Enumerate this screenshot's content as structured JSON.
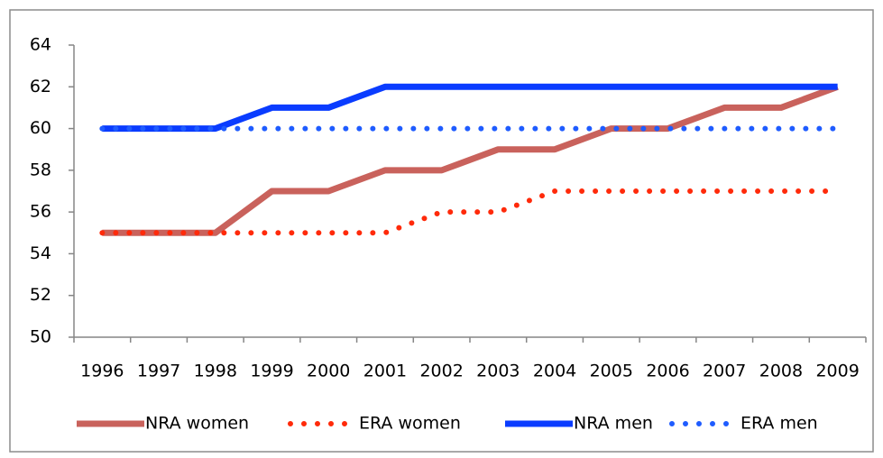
{
  "chart_data": {
    "type": "line",
    "categories": [
      "1996",
      "1997",
      "1998",
      "1999",
      "2000",
      "2001",
      "2002",
      "2003",
      "2004",
      "2005",
      "2006",
      "2007",
      "2008",
      "2009"
    ],
    "series": [
      {
        "name": "NRA women",
        "color": "#c9625c",
        "style": "solid",
        "values": [
          55,
          55,
          55,
          57,
          57,
          58,
          58,
          59,
          59,
          60,
          60,
          61,
          61,
          62
        ]
      },
      {
        "name": "ERA women",
        "color": "#ff2a0a",
        "style": "dotted",
        "values": [
          55,
          55,
          55,
          55,
          55,
          55,
          56,
          56,
          57,
          57,
          57,
          57,
          57,
          57
        ]
      },
      {
        "name": "NRA men",
        "color": "#0a3cff",
        "style": "solid",
        "values": [
          60,
          60,
          60,
          61,
          61,
          62,
          62,
          62,
          62,
          62,
          62,
          62,
          62,
          62
        ]
      },
      {
        "name": "ERA men",
        "color": "#1f5cff",
        "style": "dotted",
        "values": [
          60,
          60,
          60,
          60,
          60,
          60,
          60,
          60,
          60,
          60,
          60,
          60,
          60,
          60
        ]
      }
    ],
    "ylim": [
      50,
      64
    ],
    "yticks": [
      50,
      52,
      54,
      56,
      58,
      60,
      62,
      64
    ],
    "grid": false,
    "legend": "bottom"
  }
}
